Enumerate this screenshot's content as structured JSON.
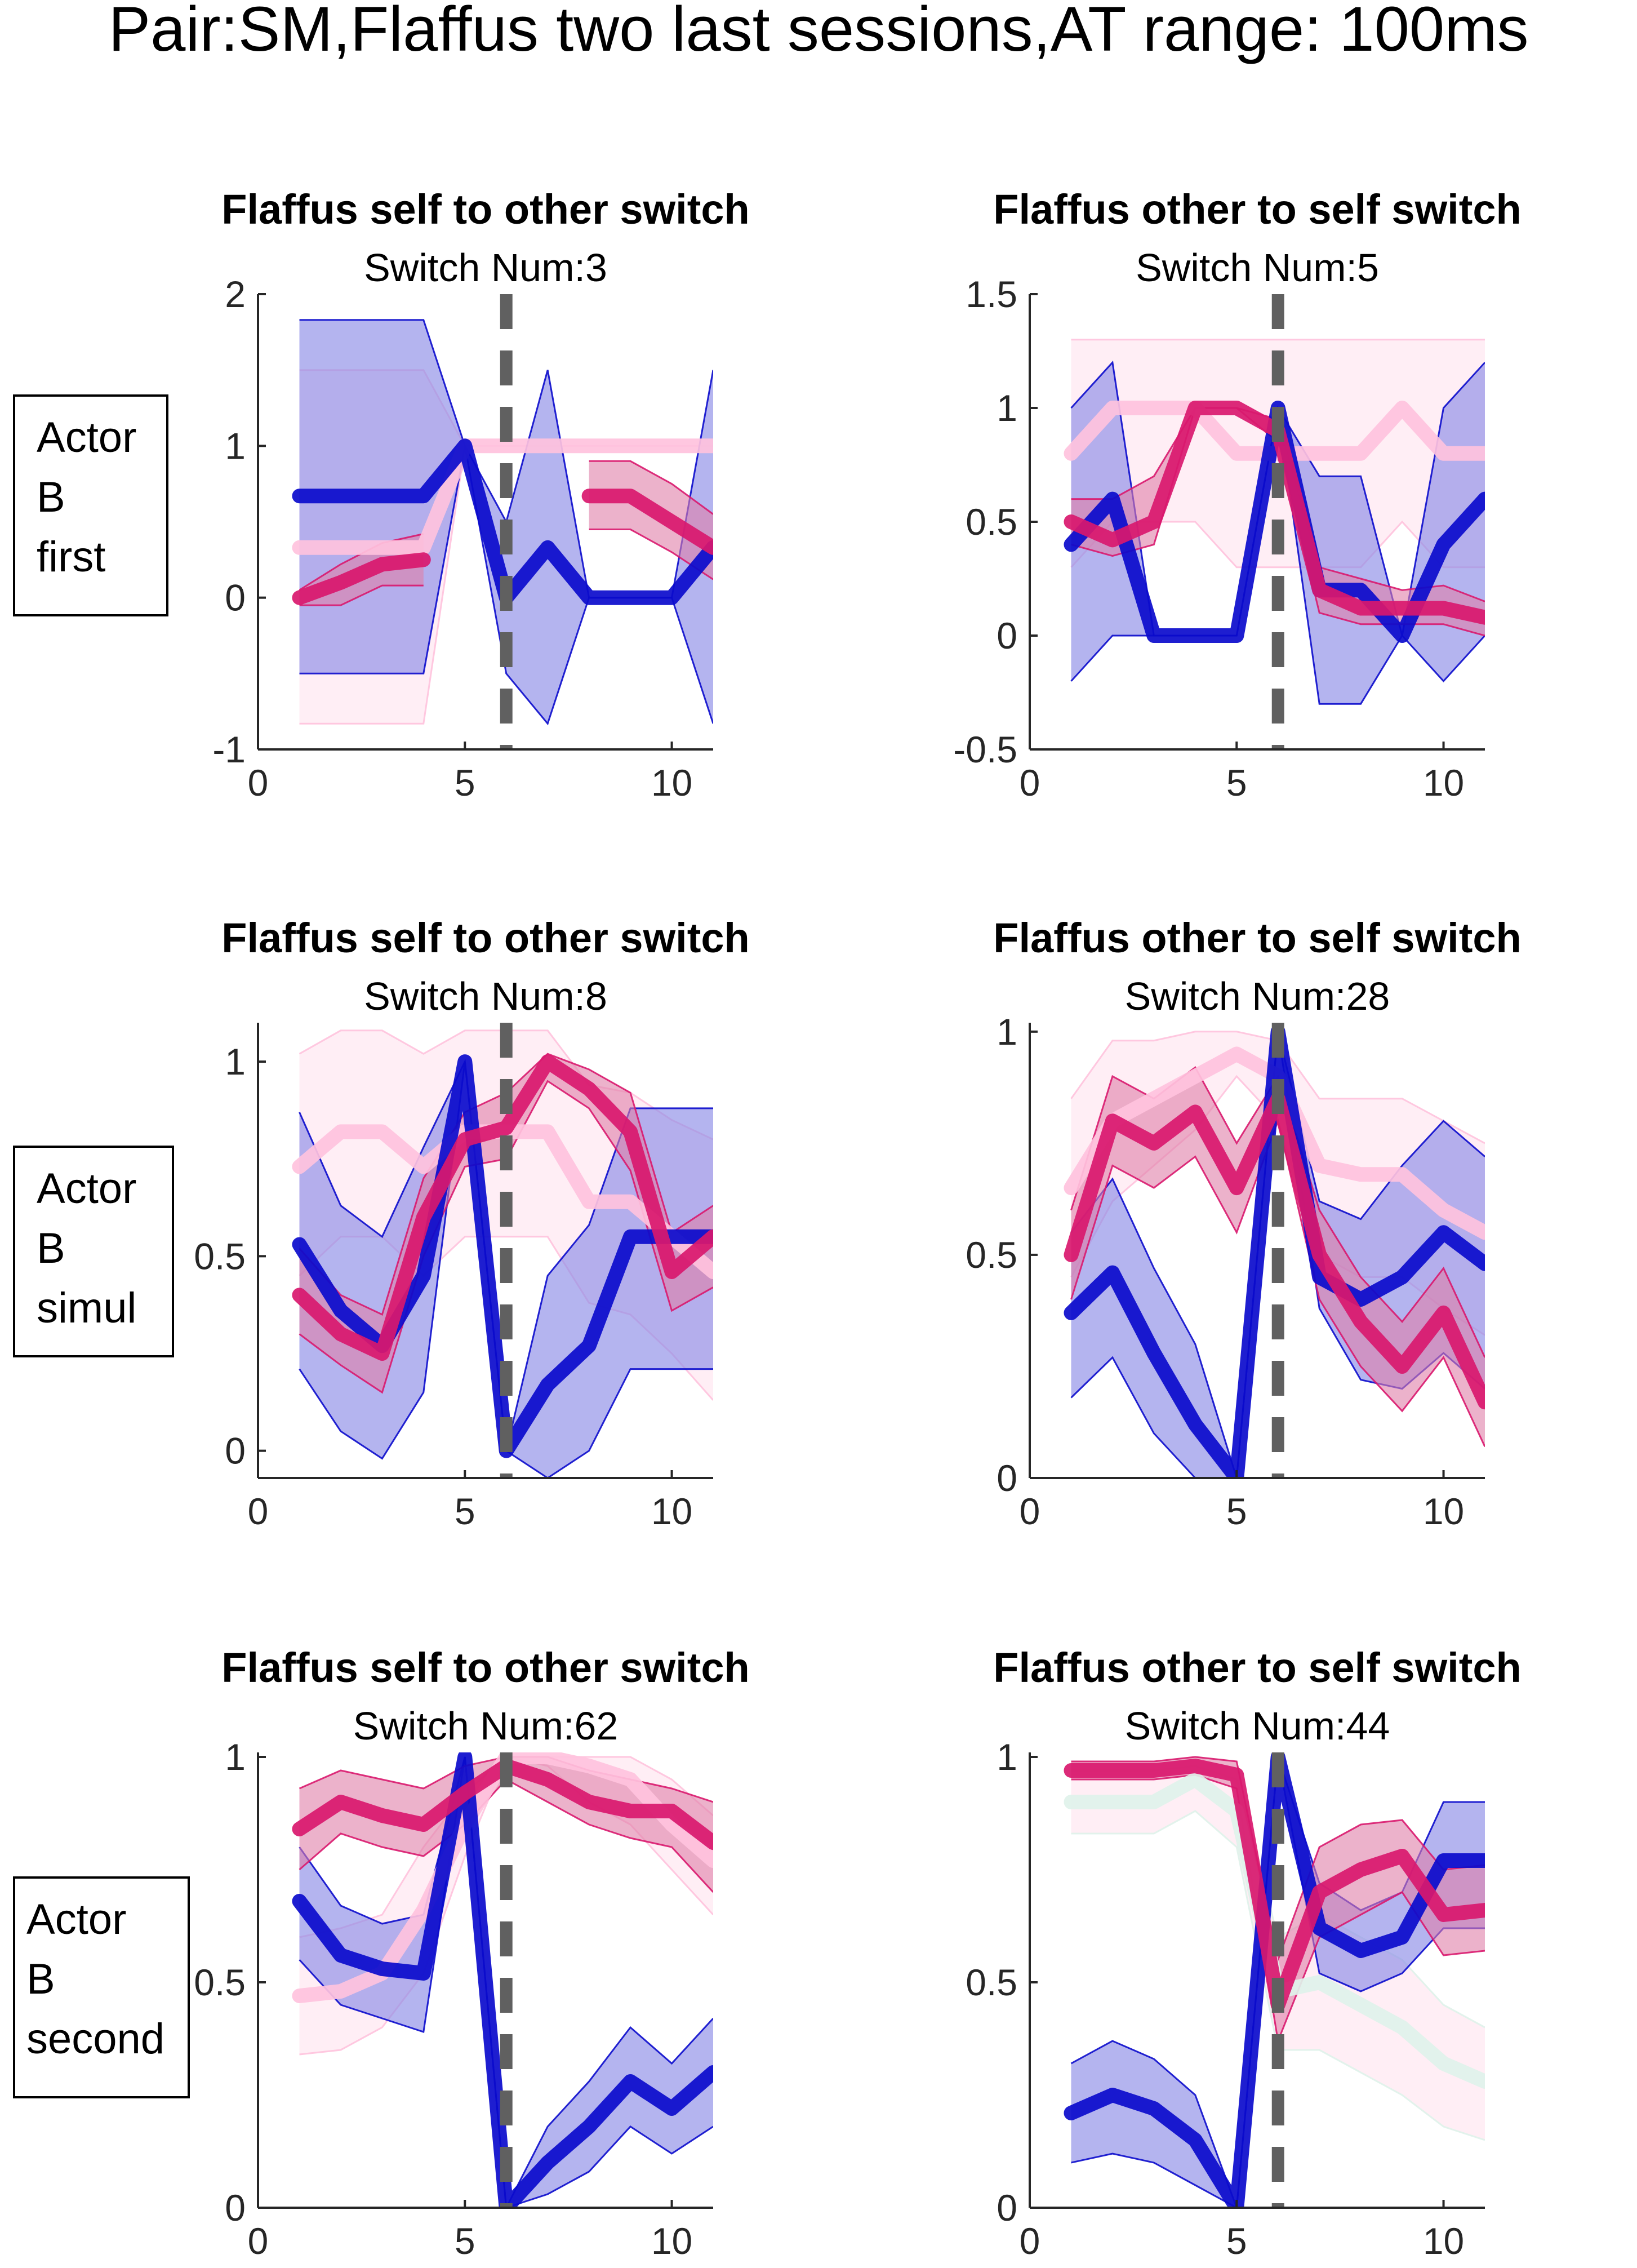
{
  "figure": {
    "title": "Pair:SM,Flaffus two last sessions,AT range: 100ms"
  },
  "row_labels": [
    [
      "Actor",
      "B",
      "first"
    ],
    [
      "Actor",
      "B",
      "simul"
    ],
    [
      "Actor",
      "B",
      "second"
    ]
  ],
  "colors": {
    "blue": "#0b0bcc",
    "blue_fill": "#8c8ce6",
    "magenta": "#d9186e",
    "magenta_fill": "#e07fa8",
    "pink": "#ffc2dd",
    "pink_fill": "#ffe3ee",
    "mint": "#dff2ea",
    "dashed": "#606060"
  },
  "chart_data": [
    {
      "type": "line",
      "title": "Flaffus self to other switch",
      "subtitle": "Switch Num:3",
      "xlim": [
        0,
        11
      ],
      "ylim": [
        -1,
        2
      ],
      "xticks": [
        0,
        5,
        10
      ],
      "yticks": [
        -1,
        0,
        1,
        2
      ],
      "ytick_labels": [
        "-1",
        "0",
        "1",
        "2"
      ],
      "switch_x": 6,
      "series": [
        {
          "color": "pink",
          "x": [
            1,
            2,
            3,
            4,
            5,
            6,
            7,
            8,
            9,
            10,
            11
          ],
          "values": [
            0.33,
            0.33,
            0.33,
            0.33,
            1,
            1,
            1,
            1,
            1,
            1,
            1
          ],
          "lower": [
            -0.83,
            -0.83,
            -0.83,
            -0.83,
            1,
            1,
            1,
            1,
            1,
            1,
            1
          ],
          "upper": [
            1.5,
            1.5,
            1.5,
            1.5,
            1,
            1,
            1,
            1,
            1,
            1,
            1
          ]
        },
        {
          "color": "blue",
          "x": [
            1,
            2,
            3,
            4,
            5,
            6,
            7,
            8,
            9,
            10,
            11
          ],
          "values": [
            0.67,
            0.67,
            0.67,
            0.67,
            1,
            0,
            0.33,
            0,
            0,
            0,
            0.33
          ],
          "lower": [
            -0.5,
            -0.5,
            -0.5,
            -0.5,
            1,
            -0.5,
            -0.83,
            0,
            0,
            0,
            -0.83
          ],
          "upper": [
            1.83,
            1.83,
            1.83,
            1.83,
            1,
            0.5,
            1.5,
            0,
            0,
            0,
            1.5
          ]
        },
        {
          "color": "magenta",
          "x": [
            1,
            2,
            3,
            4
          ],
          "values": [
            0,
            0.1,
            0.22,
            0.25
          ],
          "lower": [
            -0.05,
            -0.05,
            0.08,
            0.08
          ],
          "upper": [
            0.05,
            0.22,
            0.36,
            0.42
          ]
        },
        {
          "color": "magenta",
          "x": [
            8,
            9,
            10,
            11
          ],
          "values": [
            0.67,
            0.67,
            0.5,
            0.33
          ],
          "lower": [
            0.45,
            0.45,
            0.3,
            0.12
          ],
          "upper": [
            0.9,
            0.9,
            0.75,
            0.55
          ]
        }
      ]
    },
    {
      "type": "line",
      "title": "Flaffus other to self switch",
      "subtitle": "Switch Num:5",
      "xlim": [
        0,
        11
      ],
      "ylim": [
        -0.5,
        1.5
      ],
      "xticks": [
        0,
        5,
        10
      ],
      "yticks": [
        -0.5,
        0,
        0.5,
        1,
        1.5
      ],
      "ytick_labels": [
        "-0.5",
        "0",
        "0.5",
        "1",
        "1.5"
      ],
      "switch_x": 6,
      "series": [
        {
          "color": "pink",
          "x": [
            1,
            2,
            3,
            4,
            5,
            6,
            7,
            8,
            9,
            10,
            11
          ],
          "values": [
            0.8,
            1,
            1,
            1,
            0.8,
            0.8,
            0.8,
            0.8,
            1,
            0.8,
            0.8
          ],
          "lower": [
            0.3,
            0.5,
            0.5,
            0.5,
            0.3,
            0.3,
            0.3,
            0.3,
            0.5,
            0.3,
            0.3
          ],
          "upper": [
            1.3,
            1.3,
            1.3,
            1.3,
            1.3,
            1.3,
            1.3,
            1.3,
            1.3,
            1.3,
            1.3
          ]
        },
        {
          "color": "blue",
          "x": [
            1,
            2,
            3,
            4,
            5,
            6,
            7,
            8,
            9,
            10,
            11
          ],
          "values": [
            0.4,
            0.6,
            0,
            0,
            0,
            1,
            0.2,
            0.2,
            0,
            0.4,
            0.6
          ],
          "lower": [
            -0.2,
            0,
            0,
            0,
            0,
            1,
            -0.3,
            -0.3,
            0,
            -0.2,
            0
          ],
          "upper": [
            1,
            1.2,
            0,
            0,
            0,
            1,
            0.7,
            0.7,
            0,
            1,
            1.2
          ]
        },
        {
          "color": "magenta",
          "x": [
            1,
            2,
            3,
            4,
            5,
            6,
            7,
            8,
            9,
            10,
            11
          ],
          "values": [
            0.5,
            0.42,
            0.5,
            1,
            1,
            0.9,
            0.2,
            0.12,
            0.12,
            0.12,
            0.08
          ],
          "lower": [
            0.4,
            0.35,
            0.4,
            1,
            1,
            0.85,
            0.1,
            0.05,
            0.05,
            0.05,
            0
          ],
          "upper": [
            0.6,
            0.6,
            0.7,
            1,
            1,
            0.95,
            0.3,
            0.25,
            0.2,
            0.22,
            0.15
          ]
        }
      ]
    },
    {
      "type": "line",
      "title": "Flaffus self to other switch",
      "subtitle": "Switch Num:8",
      "xlim": [
        0,
        11
      ],
      "ylim": [
        -0.07,
        1.1
      ],
      "xticks": [
        0,
        5,
        10
      ],
      "yticks": [
        0,
        0.5,
        1
      ],
      "ytick_labels": [
        "0",
        "0.5",
        "1"
      ],
      "switch_x": 6,
      "series": [
        {
          "color": "pink",
          "x": [
            1,
            2,
            3,
            4,
            5,
            6,
            7,
            8,
            9,
            10,
            11
          ],
          "values": [
            0.73,
            0.82,
            0.82,
            0.73,
            0.82,
            0.82,
            0.82,
            0.64,
            0.64,
            0.55,
            0.46
          ],
          "lower": [
            0.45,
            0.55,
            0.55,
            0.45,
            0.55,
            0.55,
            0.55,
            0.38,
            0.35,
            0.25,
            0.13
          ],
          "upper": [
            1.02,
            1.08,
            1.08,
            1.02,
            1.08,
            1.08,
            1.08,
            0.94,
            0.92,
            0.85,
            0.8
          ]
        },
        {
          "color": "blue",
          "x": [
            1,
            2,
            3,
            4,
            5,
            6,
            7,
            8,
            9,
            10,
            11
          ],
          "values": [
            0.53,
            0.36,
            0.27,
            0.45,
            1,
            0,
            0.17,
            0.27,
            0.55,
            0.55,
            0.55
          ],
          "lower": [
            0.21,
            0.05,
            -0.02,
            0.15,
            1,
            0,
            -0.07,
            0,
            0.21,
            0.21,
            0.21
          ],
          "upper": [
            0.87,
            0.63,
            0.55,
            0.78,
            1,
            0,
            0.45,
            0.58,
            0.88,
            0.88,
            0.88
          ]
        },
        {
          "color": "magenta",
          "x": [
            1,
            2,
            3,
            4,
            5,
            6,
            7,
            8,
            9,
            10,
            11
          ],
          "values": [
            0.4,
            0.3,
            0.25,
            0.6,
            0.8,
            0.83,
            1,
            0.93,
            0.82,
            0.46,
            0.55
          ],
          "lower": [
            0.3,
            0.22,
            0.15,
            0.5,
            0.73,
            0.75,
            0.95,
            0.88,
            0.72,
            0.36,
            0.42
          ],
          "upper": [
            0.52,
            0.4,
            0.35,
            0.7,
            0.87,
            0.92,
            1.02,
            0.98,
            0.92,
            0.56,
            0.63
          ]
        }
      ]
    },
    {
      "type": "line",
      "title": "Flaffus other to self switch",
      "subtitle": "Switch Num:28",
      "xlim": [
        0,
        11
      ],
      "ylim": [
        0,
        1.02
      ],
      "xticks": [
        0,
        5,
        10
      ],
      "yticks": [
        0,
        0.5,
        1
      ],
      "ytick_labels": [
        "0",
        "0.5",
        "1"
      ],
      "switch_x": 6,
      "series": [
        {
          "color": "pink",
          "x": [
            1,
            2,
            3,
            4,
            5,
            6,
            7,
            8,
            9,
            10,
            11
          ],
          "values": [
            0.65,
            0.8,
            0.85,
            0.9,
            0.95,
            0.9,
            0.7,
            0.68,
            0.68,
            0.6,
            0.55
          ],
          "lower": [
            0.45,
            0.62,
            0.7,
            0.78,
            0.9,
            0.8,
            0.5,
            0.45,
            0.45,
            0.38,
            0.32
          ],
          "upper": [
            0.85,
            0.98,
            0.98,
            1,
            1,
            0.98,
            0.85,
            0.85,
            0.85,
            0.8,
            0.75
          ]
        },
        {
          "color": "blue",
          "x": [
            1,
            2,
            3,
            4,
            5,
            6,
            7,
            8,
            9,
            10,
            11
          ],
          "values": [
            0.37,
            0.46,
            0.28,
            0.12,
            0,
            1,
            0.45,
            0.4,
            0.45,
            0.55,
            0.48
          ],
          "lower": [
            0.18,
            0.27,
            0.1,
            0,
            0,
            1,
            0.38,
            0.22,
            0.2,
            0.28,
            0.2
          ],
          "upper": [
            0.55,
            0.67,
            0.47,
            0.3,
            0,
            1,
            0.62,
            0.58,
            0.7,
            0.8,
            0.72
          ]
        },
        {
          "color": "magenta",
          "x": [
            1,
            2,
            3,
            4,
            5,
            6,
            7,
            8,
            9,
            10,
            11
          ],
          "values": [
            0.5,
            0.8,
            0.75,
            0.82,
            0.65,
            0.85,
            0.5,
            0.35,
            0.25,
            0.37,
            0.17
          ],
          "lower": [
            0.4,
            0.7,
            0.65,
            0.72,
            0.55,
            0.8,
            0.4,
            0.25,
            0.15,
            0.27,
            0.07
          ],
          "upper": [
            0.6,
            0.9,
            0.85,
            0.92,
            0.75,
            0.9,
            0.6,
            0.45,
            0.35,
            0.47,
            0.27
          ]
        }
      ]
    },
    {
      "type": "line",
      "title": "Flaffus self to other switch",
      "subtitle": "Switch Num:62",
      "xlim": [
        0,
        11
      ],
      "ylim": [
        0,
        1.01
      ],
      "xticks": [
        0,
        5,
        10
      ],
      "yticks": [
        0,
        0.5,
        1
      ],
      "ytick_labels": [
        "0",
        "0.5",
        "1"
      ],
      "switch_x": 6,
      "series": [
        {
          "color": "pink",
          "x": [
            1,
            2,
            3,
            4,
            5,
            6,
            7,
            8,
            9,
            10,
            11
          ],
          "values": [
            0.47,
            0.48,
            0.52,
            0.66,
            0.85,
            1,
            1,
            0.98,
            0.95,
            0.85,
            0.77
          ],
          "lower": [
            0.34,
            0.35,
            0.4,
            0.52,
            0.78,
            1,
            0.98,
            0.9,
            0.85,
            0.75,
            0.65
          ],
          "upper": [
            0.6,
            0.62,
            0.65,
            0.8,
            0.92,
            1,
            1,
            1,
            1,
            0.95,
            0.87
          ]
        },
        {
          "color": "blue",
          "x": [
            1,
            2,
            3,
            4,
            5,
            6,
            7,
            8,
            9,
            10,
            11
          ],
          "values": [
            0.68,
            0.56,
            0.53,
            0.52,
            1,
            0,
            0.1,
            0.18,
            0.28,
            0.22,
            0.3
          ],
          "lower": [
            0.55,
            0.45,
            0.42,
            0.39,
            1,
            0,
            0.03,
            0.08,
            0.18,
            0.12,
            0.18
          ],
          "upper": [
            0.8,
            0.67,
            0.63,
            0.65,
            1,
            0,
            0.18,
            0.28,
            0.4,
            0.32,
            0.42
          ]
        },
        {
          "color": "magenta",
          "x": [
            1,
            2,
            3,
            4,
            5,
            6,
            7,
            8,
            9,
            10,
            11
          ],
          "values": [
            0.84,
            0.9,
            0.87,
            0.85,
            0.92,
            0.98,
            0.95,
            0.9,
            0.88,
            0.88,
            0.81
          ],
          "lower": [
            0.75,
            0.83,
            0.8,
            0.78,
            0.85,
            0.95,
            0.9,
            0.85,
            0.82,
            0.8,
            0.7
          ],
          "upper": [
            0.93,
            0.97,
            0.95,
            0.93,
            0.98,
            1,
            1,
            0.97,
            0.95,
            0.93,
            0.9
          ]
        }
      ]
    },
    {
      "type": "line",
      "title": "Flaffus other to self switch",
      "subtitle": "Switch Num:44",
      "xlim": [
        0,
        11
      ],
      "ylim": [
        0,
        1.01
      ],
      "xticks": [
        0,
        5,
        10
      ],
      "yticks": [
        0,
        0.5,
        1
      ],
      "ytick_labels": [
        "0",
        "0.5",
        "1"
      ],
      "switch_x": 6,
      "series": [
        {
          "color": "mint",
          "x": [
            1,
            2,
            3,
            4,
            5,
            6,
            7,
            8,
            9,
            10,
            11
          ],
          "values": [
            0.9,
            0.9,
            0.9,
            0.95,
            0.88,
            0.48,
            0.5,
            0.45,
            0.4,
            0.32,
            0.28
          ],
          "lower": [
            0.83,
            0.83,
            0.83,
            0.88,
            0.8,
            0.35,
            0.35,
            0.3,
            0.25,
            0.18,
            0.15
          ],
          "upper": [
            0.97,
            0.97,
            0.97,
            0.98,
            0.95,
            0.6,
            0.65,
            0.6,
            0.55,
            0.45,
            0.4
          ]
        },
        {
          "color": "blue",
          "x": [
            1,
            2,
            3,
            4,
            5,
            6,
            7,
            8,
            9,
            10,
            11
          ],
          "values": [
            0.21,
            0.25,
            0.22,
            0.15,
            0,
            1,
            0.62,
            0.57,
            0.6,
            0.77,
            0.77
          ],
          "lower": [
            0.1,
            0.12,
            0.1,
            0.05,
            0,
            1,
            0.52,
            0.48,
            0.52,
            0.62,
            0.62
          ],
          "upper": [
            0.32,
            0.37,
            0.33,
            0.25,
            0,
            1,
            0.72,
            0.66,
            0.7,
            0.9,
            0.9
          ]
        },
        {
          "color": "magenta",
          "x": [
            1,
            2,
            3,
            4,
            5,
            6,
            7,
            8,
            9,
            10,
            11
          ],
          "values": [
            0.97,
            0.97,
            0.97,
            0.98,
            0.96,
            0.45,
            0.7,
            0.75,
            0.78,
            0.65,
            0.66
          ],
          "lower": [
            0.95,
            0.95,
            0.95,
            0.96,
            0.93,
            0.37,
            0.6,
            0.65,
            0.7,
            0.56,
            0.57
          ],
          "upper": [
            0.99,
            0.99,
            0.99,
            1,
            0.99,
            0.55,
            0.8,
            0.85,
            0.86,
            0.75,
            0.76
          ]
        }
      ]
    }
  ]
}
